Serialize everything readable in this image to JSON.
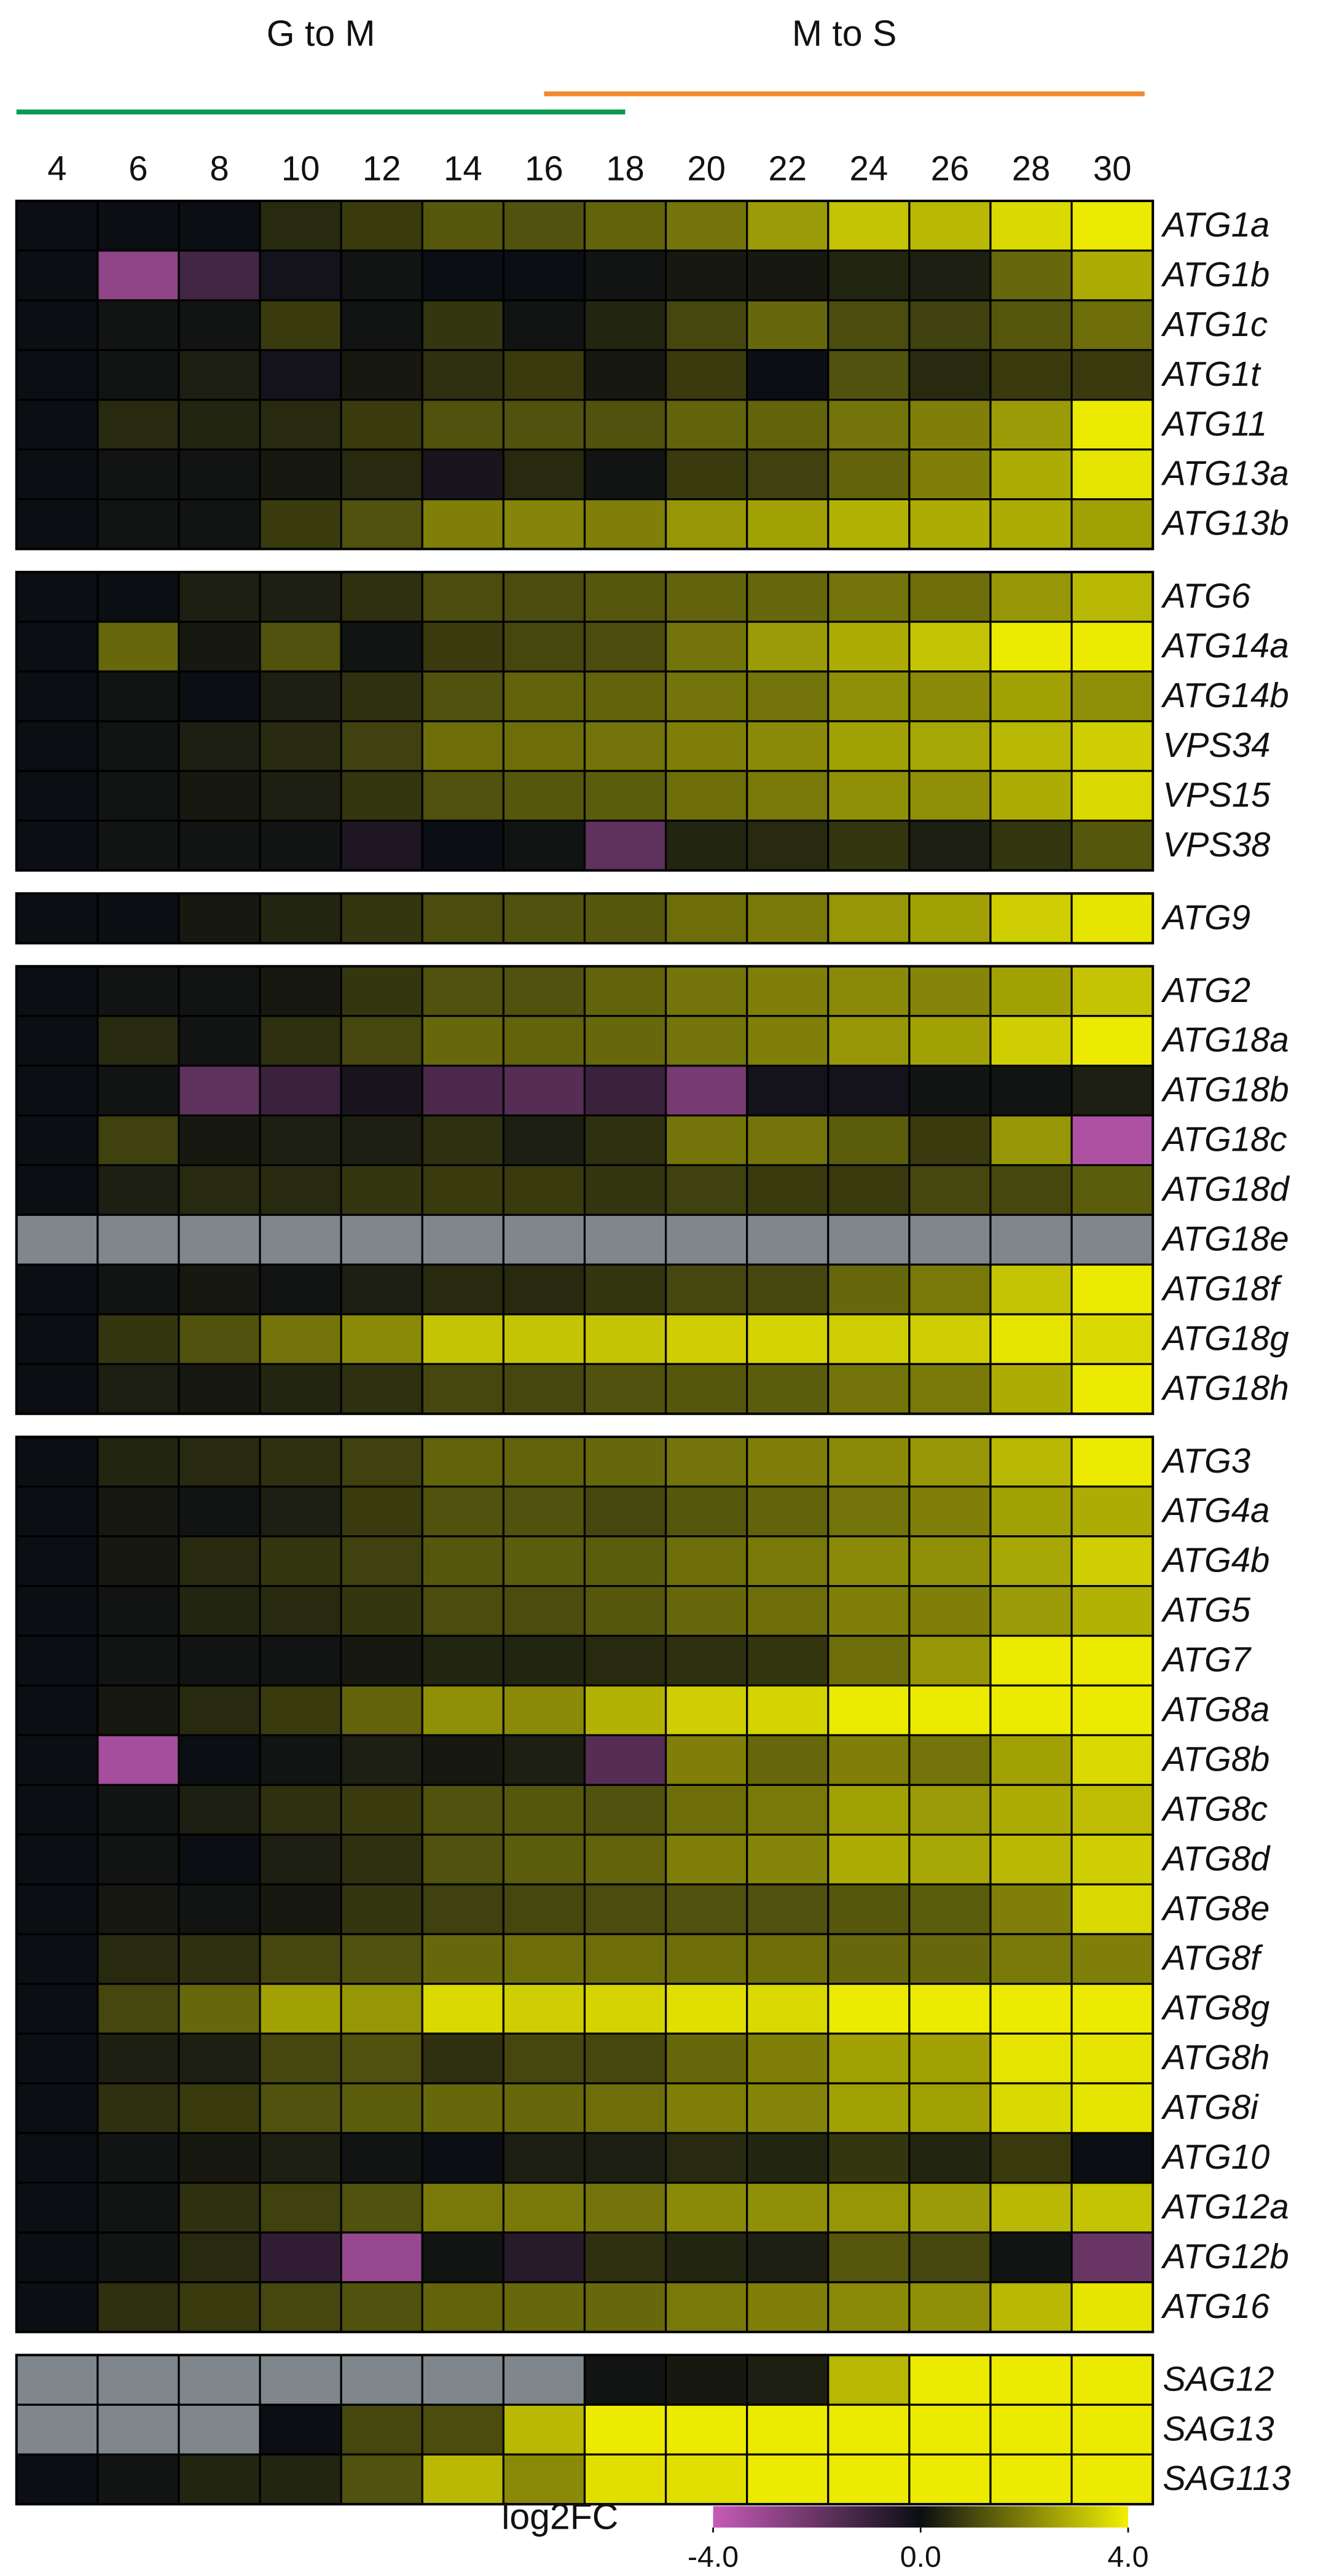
{
  "chart_data": {
    "type": "heatmap",
    "x": [
      4,
      6,
      8,
      10,
      12,
      14,
      16,
      18,
      20,
      22,
      24,
      26,
      28,
      30
    ],
    "groups": [
      {
        "label": "G to M",
        "color": "#0a9a50",
        "range": [
          4,
          18
        ]
      },
      {
        "label": "M to S",
        "color": "#f28a2e",
        "range": [
          16,
          30
        ]
      }
    ],
    "blocks": [
      {
        "rows": [
          {
            "name": "ATG1a",
            "values": [
              0,
              0,
              0,
              0.5,
              0.8,
              1.3,
              1.2,
              1.5,
              1.8,
              2.5,
              3.2,
              3,
              3.6,
              3.9
            ]
          },
          {
            "name": "ATG1b",
            "values": [
              0,
              -2.8,
              -1.2,
              -0.2,
              0.1,
              0,
              0,
              0.1,
              0.2,
              0.2,
              0.4,
              0.3,
              1.6,
              2.8
            ]
          },
          {
            "name": "ATG1c",
            "values": [
              0,
              0.1,
              0.1,
              0.8,
              0.1,
              0.7,
              0.1,
              0.4,
              1,
              1.6,
              1.1,
              0.9,
              1.3,
              1.7
            ]
          },
          {
            "name": "ATG1t",
            "values": [
              0,
              0.1,
              0.3,
              -0.2,
              0.2,
              0.6,
              0.8,
              0.2,
              0.8,
              0,
              1.2,
              0.5,
              0.8,
              0.8
            ]
          },
          {
            "name": "ATG11",
            "values": [
              0,
              0.5,
              0.4,
              0.5,
              0.8,
              1.2,
              1.2,
              1.2,
              1.5,
              1.5,
              1.8,
              2,
              2.5,
              3.9
            ]
          },
          {
            "name": "ATG13a",
            "values": [
              0,
              0.1,
              0.1,
              0.2,
              0.5,
              -0.3,
              0.5,
              0.1,
              0.8,
              0.9,
              1.5,
              2,
              2.8,
              3.8
            ]
          },
          {
            "name": "ATG13b",
            "values": [
              0,
              0.1,
              0.1,
              0.8,
              1.2,
              2,
              2.1,
              2,
              2.4,
              2.6,
              2.9,
              2.8,
              2.8,
              2.6
            ]
          }
        ]
      },
      {
        "rows": [
          {
            "name": "ATG6",
            "values": [
              0,
              0,
              0.3,
              0.3,
              0.6,
              1.1,
              1.1,
              1.3,
              1.5,
              1.6,
              1.8,
              1.7,
              2.4,
              3
            ]
          },
          {
            "name": "ATG14a",
            "values": [
              0,
              1.6,
              0.2,
              1.2,
              0.1,
              0.8,
              1,
              1.1,
              1.8,
              2.5,
              2.8,
              3.2,
              3.9,
              3.9
            ]
          },
          {
            "name": "ATG14b",
            "values": [
              0,
              0.1,
              0,
              0.3,
              0.6,
              1.2,
              1.5,
              1.5,
              1.8,
              1.8,
              2.3,
              2.2,
              2.6,
              2.3
            ]
          },
          {
            "name": "VPS34",
            "values": [
              0,
              0.1,
              0.3,
              0.5,
              0.9,
              1.7,
              1.7,
              1.8,
              2,
              2.2,
              2.6,
              2.7,
              3,
              3.4
            ]
          },
          {
            "name": "VPS15",
            "values": [
              0,
              0.1,
              0.2,
              0.3,
              0.7,
              1.2,
              1.3,
              1.4,
              1.7,
              1.9,
              2.3,
              2.3,
              2.8,
              3.6
            ]
          },
          {
            "name": "VPS38",
            "values": [
              0,
              0.1,
              0.1,
              0.1,
              -0.4,
              0,
              0.1,
              -1.8,
              0.4,
              0.5,
              0.7,
              0.3,
              0.7,
              1.3
            ]
          }
        ]
      },
      {
        "rows": [
          {
            "name": "ATG9",
            "values": [
              0,
              0,
              0.2,
              0.4,
              0.7,
              1.1,
              1.2,
              1.3,
              1.7,
              1.9,
              2.4,
              2.6,
              3.4,
              3.8
            ]
          }
        ]
      },
      {
        "rows": [
          {
            "name": "ATG2",
            "values": [
              0,
              0.1,
              0.1,
              0.2,
              0.7,
              1.2,
              1.2,
              1.5,
              1.8,
              2,
              2.2,
              2.1,
              2.6,
              3.2
            ]
          },
          {
            "name": "ATG18a",
            "values": [
              0,
              0.5,
              0.1,
              0.6,
              1,
              1.6,
              1.5,
              1.6,
              1.8,
              2,
              2.4,
              2.6,
              3.4,
              3.9
            ]
          },
          {
            "name": "ATG18b",
            "values": [
              0,
              0.1,
              -1.8,
              -1,
              -0.3,
              -1.4,
              -1.6,
              -1,
              -2.3,
              -0.2,
              -0.2,
              0.1,
              0.1,
              0.3
            ]
          },
          {
            "name": "ATG18c",
            "values": [
              0,
              0.9,
              0.2,
              0.3,
              0.3,
              0.6,
              0.3,
              0.6,
              1.8,
              1.8,
              1.4,
              0.8,
              2.4,
              -3.5
            ]
          },
          {
            "name": "ATG18d",
            "values": [
              0,
              0.3,
              0.5,
              0.5,
              0.7,
              0.8,
              0.8,
              0.7,
              0.9,
              0.8,
              0.8,
              1,
              1,
              1.4
            ]
          },
          {
            "name": "ATG18e",
            "values": [
              null,
              null,
              null,
              null,
              null,
              null,
              null,
              null,
              null,
              null,
              null,
              null,
              null,
              null
            ]
          },
          {
            "name": "ATG18f",
            "values": [
              0,
              0.1,
              0.2,
              0.1,
              0.3,
              0.5,
              0.5,
              0.7,
              1,
              1,
              1.6,
              1.9,
              3.2,
              3.9
            ]
          },
          {
            "name": "ATG18g",
            "values": [
              0,
              0.7,
              1.2,
              1.8,
              2.2,
              3.2,
              3.2,
              3.2,
              3.4,
              3.5,
              3.4,
              3.4,
              3.8,
              3.6
            ]
          },
          {
            "name": "ATG18h",
            "values": [
              0,
              0.3,
              0.2,
              0.4,
              0.6,
              1,
              1,
              1.2,
              1.3,
              1.4,
              1.8,
              1.9,
              2.8,
              3.9
            ]
          }
        ]
      },
      {
        "rows": [
          {
            "name": "ATG3",
            "values": [
              0,
              0.4,
              0.5,
              0.6,
              0.9,
              1.5,
              1.5,
              1.6,
              1.8,
              2,
              2.2,
              2.4,
              3,
              3.9
            ]
          },
          {
            "name": "ATG4a",
            "values": [
              0,
              0.2,
              0.1,
              0.3,
              0.8,
              1.2,
              1.2,
              1,
              1.3,
              1.5,
              1.8,
              2,
              2.6,
              2.8
            ]
          },
          {
            "name": "ATG4b",
            "values": [
              0,
              0.2,
              0.5,
              0.7,
              0.9,
              1.3,
              1.4,
              1.4,
              1.7,
              1.9,
              2.2,
              2.3,
              2.7,
              3.4
            ]
          },
          {
            "name": "ATG5",
            "values": [
              0,
              0.1,
              0.4,
              0.5,
              0.7,
              1.1,
              1.1,
              1.3,
              1.6,
              1.7,
              2,
              2,
              2.5,
              2.9
            ]
          },
          {
            "name": "ATG7",
            "values": [
              0,
              0.1,
              0.1,
              0.1,
              0.2,
              0.4,
              0.4,
              0.5,
              0.6,
              0.7,
              1.7,
              2.4,
              3.9,
              3.9
            ]
          },
          {
            "name": "ATG8a",
            "values": [
              0,
              0.2,
              0.5,
              0.8,
              1.5,
              2.3,
              2.2,
              2.9,
              3.4,
              3.5,
              3.9,
              3.9,
              3.9,
              3.9
            ]
          },
          {
            "name": "ATG8b",
            "values": [
              0,
              -3.3,
              0,
              0.1,
              0.3,
              0.2,
              0.3,
              -1.6,
              2,
              1.6,
              2,
              1.8,
              2.6,
              3.6
            ]
          },
          {
            "name": "ATG8c",
            "values": [
              0,
              0.1,
              0.3,
              0.6,
              0.8,
              1.2,
              1.3,
              1.2,
              1.7,
              1.9,
              2.6,
              2.5,
              2.8,
              3.1
            ]
          },
          {
            "name": "ATG8d",
            "values": [
              0,
              0.1,
              0,
              0.3,
              0.6,
              1.2,
              1.4,
              1.5,
              2,
              2.1,
              2.8,
              2.7,
              3,
              3.4
            ]
          },
          {
            "name": "ATG8e",
            "values": [
              0,
              0.2,
              0.1,
              0.2,
              0.7,
              0.9,
              1,
              1.1,
              1.2,
              1.2,
              1.3,
              1.4,
              2,
              3.6
            ]
          },
          {
            "name": "ATG8f",
            "values": [
              0,
              0.5,
              0.6,
              1,
              1.2,
              1.6,
              1.7,
              1.7,
              1.7,
              1.7,
              1.6,
              1.6,
              1.9,
              2
            ]
          },
          {
            "name": "ATG8g",
            "values": [
              0,
              1,
              1.6,
              2.6,
              2.4,
              3.6,
              3.4,
              3.5,
              3.7,
              3.6,
              3.9,
              3.9,
              3.9,
              3.9
            ]
          },
          {
            "name": "ATG8h",
            "values": [
              0,
              0.3,
              0.3,
              1,
              1.2,
              0.6,
              1,
              1,
              1.6,
              2,
              2.6,
              2.6,
              3.8,
              3.8
            ]
          },
          {
            "name": "ATG8i",
            "values": [
              0,
              0.6,
              0.8,
              1.2,
              1.4,
              1.6,
              1.6,
              1.7,
              2,
              2.1,
              2.6,
              2.6,
              3.6,
              3.8
            ]
          },
          {
            "name": "ATG10",
            "values": [
              0,
              0.1,
              0.2,
              0.3,
              0.1,
              0,
              0.3,
              0.3,
              0.5,
              0.4,
              0.7,
              0.4,
              0.8,
              0
            ]
          },
          {
            "name": "ATG12a",
            "values": [
              0,
              0.1,
              0.6,
              0.9,
              1.2,
              1.9,
              1.9,
              1.8,
              2.2,
              2.3,
              2.4,
              2.5,
              3,
              3.2
            ]
          },
          {
            "name": "ATG12b",
            "values": [
              0,
              0.1,
              0.5,
              -0.8,
              -3,
              0.1,
              -0.6,
              0.6,
              0.4,
              0.3,
              1.3,
              1,
              0.1,
              -2
            ]
          },
          {
            "name": "ATG16",
            "values": [
              0,
              0.6,
              0.8,
              1,
              1.2,
              1.5,
              1.6,
              1.6,
              1.9,
              2,
              2.2,
              2.3,
              3,
              3.8
            ]
          }
        ]
      },
      {
        "rows": [
          {
            "name": "SAG12",
            "values": [
              null,
              null,
              null,
              null,
              null,
              null,
              null,
              0.1,
              0.2,
              0.3,
              3,
              3.9,
              3.9,
              3.9
            ]
          },
          {
            "name": "SAG13",
            "values": [
              null,
              null,
              null,
              0,
              1,
              1.1,
              3,
              3.9,
              3.9,
              3.9,
              3.9,
              3.9,
              3.9,
              3.9
            ]
          },
          {
            "name": "SAG113",
            "values": [
              0,
              0.1,
              0.4,
              0.4,
              1.2,
              3,
              2.2,
              3.7,
              3.7,
              3.9,
              3.9,
              3.9,
              3.9,
              3.9
            ]
          }
        ]
      }
    ],
    "colormap": [
      "#c65bb8",
      "#0b0e12",
      "#f2f000"
    ],
    "na_color": "#7f878d",
    "colorbar": {
      "title": "log2FC",
      "clim": [
        -4,
        4
      ],
      "ticks": [
        {
          "value": -4,
          "label": "-4.0"
        },
        {
          "value": 0,
          "label": "0.0"
        },
        {
          "value": 4,
          "label": "4.0"
        }
      ]
    }
  }
}
